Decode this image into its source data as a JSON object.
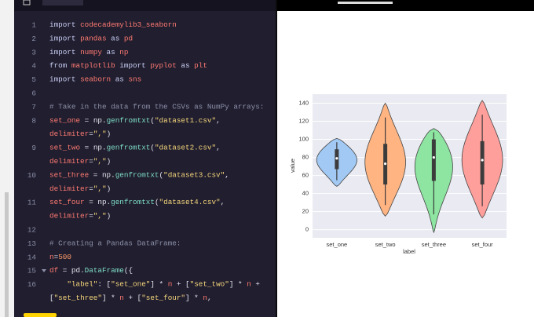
{
  "editor": {
    "rows": [
      {
        "number": 1,
        "tokens": [
          [
            "import",
            "#c9cff5"
          ],
          [
            " codecademylib3_seaborn",
            "#ff7b72"
          ]
        ]
      },
      {
        "number": 2,
        "tokens": [
          [
            "import",
            "#c9cff5"
          ],
          [
            " pandas",
            "#ff7b72"
          ],
          [
            " as",
            "#c9cff5"
          ],
          [
            " pd",
            "#ff7b72"
          ]
        ]
      },
      {
        "number": 3,
        "tokens": [
          [
            "import",
            "#c9cff5"
          ],
          [
            " numpy",
            "#ff7b72"
          ],
          [
            " as",
            "#c9cff5"
          ],
          [
            " np",
            "#ff7b72"
          ]
        ]
      },
      {
        "number": 4,
        "tokens": [
          [
            "from",
            "#c9cff5"
          ],
          [
            " matplotlib",
            "#ff7b72"
          ],
          [
            " import",
            "#c9cff5"
          ],
          [
            " pyplot",
            "#ff7b72"
          ],
          [
            " as",
            "#c9cff5"
          ],
          [
            " plt",
            "#ff7b72"
          ]
        ]
      },
      {
        "number": 5,
        "tokens": [
          [
            "import",
            "#c9cff5"
          ],
          [
            " seaborn",
            "#ff7b72"
          ],
          [
            " as",
            "#c9cff5"
          ],
          [
            " sns",
            "#ff7b72"
          ]
        ]
      },
      {
        "number": 6,
        "tokens": []
      },
      {
        "number": 7,
        "tokens": [
          [
            "# Take in the data from the CSVs as NumPy arrays:",
            "#8b90a8"
          ]
        ]
      },
      {
        "number": 8,
        "tokens": [
          [
            "set_one",
            "#ff7b72"
          ],
          [
            " = ",
            "#e4e4ef"
          ],
          [
            "np.",
            "#e4e4ef"
          ],
          [
            "genfromtxt",
            "#7fe0c9"
          ],
          [
            "(",
            "#e4e4ef"
          ],
          [
            "\"dataset1.csv\"",
            "#f6d77c"
          ],
          [
            ",",
            "#e4e4ef"
          ]
        ]
      },
      {
        "tokens": [
          [
            "delimiter",
            "#ff7b72"
          ],
          [
            "=",
            "#e4e4ef"
          ],
          [
            "\",\"",
            "#f6d77c"
          ],
          [
            ")",
            "#e4e4ef"
          ]
        ]
      },
      {
        "number": 9,
        "tokens": [
          [
            "set_two",
            "#ff7b72"
          ],
          [
            " = ",
            "#e4e4ef"
          ],
          [
            "np.",
            "#e4e4ef"
          ],
          [
            "genfromtxt",
            "#7fe0c9"
          ],
          [
            "(",
            "#e4e4ef"
          ],
          [
            "\"dataset2.csv\"",
            "#f6d77c"
          ],
          [
            ",",
            "#e4e4ef"
          ]
        ]
      },
      {
        "tokens": [
          [
            "delimiter",
            "#ff7b72"
          ],
          [
            "=",
            "#e4e4ef"
          ],
          [
            "\",\"",
            "#f6d77c"
          ],
          [
            ")",
            "#e4e4ef"
          ]
        ]
      },
      {
        "number": 10,
        "tokens": [
          [
            "set_three",
            "#ff7b72"
          ],
          [
            " = ",
            "#e4e4ef"
          ],
          [
            "np.",
            "#e4e4ef"
          ],
          [
            "genfromtxt",
            "#7fe0c9"
          ],
          [
            "(",
            "#e4e4ef"
          ],
          [
            "\"dataset3.csv\"",
            "#f6d77c"
          ],
          [
            ",",
            "#e4e4ef"
          ]
        ]
      },
      {
        "tokens": [
          [
            "delimiter",
            "#ff7b72"
          ],
          [
            "=",
            "#e4e4ef"
          ],
          [
            "\",\"",
            "#f6d77c"
          ],
          [
            ")",
            "#e4e4ef"
          ]
        ]
      },
      {
        "number": 11,
        "tokens": [
          [
            "set_four",
            "#ff7b72"
          ],
          [
            " = ",
            "#e4e4ef"
          ],
          [
            "np.",
            "#e4e4ef"
          ],
          [
            "genfromtxt",
            "#7fe0c9"
          ],
          [
            "(",
            "#e4e4ef"
          ],
          [
            "\"dataset4.csv\"",
            "#f6d77c"
          ],
          [
            ",",
            "#e4e4ef"
          ]
        ]
      },
      {
        "tokens": [
          [
            "delimiter",
            "#ff7b72"
          ],
          [
            "=",
            "#e4e4ef"
          ],
          [
            "\",\"",
            "#f6d77c"
          ],
          [
            ")",
            "#e4e4ef"
          ]
        ]
      },
      {
        "number": 12,
        "tokens": []
      },
      {
        "number": 13,
        "tokens": [
          [
            "# Creating a Pandas DataFrame:",
            "#8b90a8"
          ]
        ]
      },
      {
        "number": 14,
        "tokens": [
          [
            "n",
            "#ff7b72"
          ],
          [
            "=",
            "#e4e4ef"
          ],
          [
            "500",
            "#ff9b6a"
          ]
        ]
      },
      {
        "number": 15,
        "tokens": [
          [
            "df",
            "#ff7b72"
          ],
          [
            " = ",
            "#e4e4ef"
          ],
          [
            "pd.",
            "#e4e4ef"
          ],
          [
            "DataFrame",
            "#7fe0c9"
          ],
          [
            "({",
            "#e4e4ef"
          ]
        ]
      },
      {
        "number": 16,
        "tokens": [
          [
            "    ",
            "#e4e4ef"
          ],
          [
            "\"label\"",
            "#f6d77c"
          ],
          [
            ": [",
            "#e4e4ef"
          ],
          [
            "\"set_one\"",
            "#f6d77c"
          ],
          [
            "] * ",
            "#e4e4ef"
          ],
          [
            "n",
            "#ff7b72"
          ],
          [
            " + [",
            "#e4e4ef"
          ],
          [
            "\"set_two\"",
            "#f6d77c"
          ],
          [
            "] * ",
            "#e4e4ef"
          ],
          [
            "n",
            "#ff7b72"
          ],
          [
            " +",
            "#e4e4ef"
          ]
        ]
      },
      {
        "tokens": [
          [
            "[",
            "#e4e4ef"
          ],
          [
            "\"set_three\"",
            "#f6d77c"
          ],
          [
            "] * ",
            "#e4e4ef"
          ],
          [
            "n",
            "#ff7b72"
          ],
          [
            " + [",
            "#e4e4ef"
          ],
          [
            "\"set_four\"",
            "#f6d77c"
          ],
          [
            "] * ",
            "#e4e4ef"
          ],
          [
            "n",
            "#ff7b72"
          ],
          [
            ",",
            "#e4e4ef"
          ]
        ]
      }
    ]
  },
  "chart_data": {
    "type": "violin",
    "xlabel": "label",
    "ylabel": "value",
    "categories": [
      "set_one",
      "set_two",
      "set_three",
      "set_four"
    ],
    "colors": [
      "#a1c9f4",
      "#ffb482",
      "#8de5a1",
      "#ff9f9b"
    ],
    "stats": [
      {
        "min": 48,
        "q1": 67,
        "median": 79,
        "q3": 89,
        "max": 101
      },
      {
        "min": 15,
        "q1": 50,
        "median": 73,
        "q3": 95,
        "max": 140
      },
      {
        "min": -3,
        "q1": 54,
        "median": 80,
        "q3": 100,
        "max": 112
      },
      {
        "min": 13,
        "q1": 50,
        "median": 77,
        "q3": 98,
        "max": 143
      }
    ],
    "ylim": [
      -9,
      150
    ],
    "yticks": [
      0,
      20,
      40,
      60,
      80,
      100,
      120,
      140
    ],
    "grid": true
  }
}
